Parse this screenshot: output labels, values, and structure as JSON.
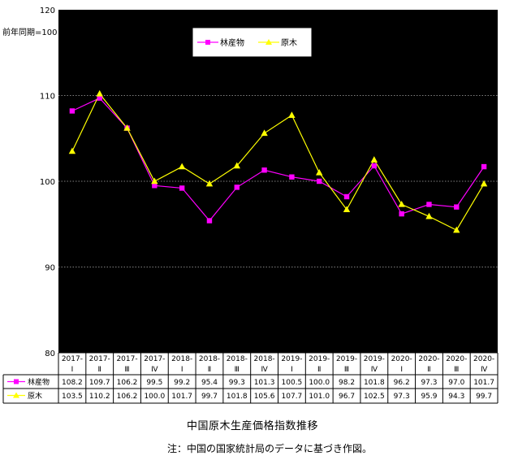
{
  "chart_data": {
    "type": "line",
    "ylabel": "前年同期=100",
    "ylim": [
      80,
      120
    ],
    "yticks": [
      "80",
      "90",
      "100",
      "110",
      "120"
    ],
    "grid": true,
    "legend_position": "top-center",
    "categories": [
      {
        "year": "2017-",
        "quarter": "Ⅰ"
      },
      {
        "year": "2017-",
        "quarter": "Ⅱ"
      },
      {
        "year": "2017-",
        "quarter": "Ⅲ"
      },
      {
        "year": "2017-",
        "quarter": "Ⅳ"
      },
      {
        "year": "2018-",
        "quarter": "Ⅰ"
      },
      {
        "year": "2018-",
        "quarter": "Ⅱ"
      },
      {
        "year": "2018-",
        "quarter": "Ⅲ"
      },
      {
        "year": "2018-",
        "quarter": "Ⅳ"
      },
      {
        "year": "2019-",
        "quarter": "Ⅰ"
      },
      {
        "year": "2019-",
        "quarter": "Ⅱ"
      },
      {
        "year": "2019-",
        "quarter": "Ⅲ"
      },
      {
        "year": "2019-",
        "quarter": "Ⅳ"
      },
      {
        "year": "2020-",
        "quarter": "Ⅰ"
      },
      {
        "year": "2020-",
        "quarter": "Ⅱ"
      },
      {
        "year": "2020-",
        "quarter": "Ⅲ"
      },
      {
        "year": "2020-",
        "quarter": "Ⅳ"
      }
    ],
    "series": [
      {
        "name": "林産物",
        "color": "#ff00ff",
        "marker": "square",
        "values": [
          108.2,
          109.7,
          106.2,
          99.5,
          99.2,
          95.4,
          99.3,
          101.3,
          100.5,
          100.0,
          98.2,
          101.8,
          96.2,
          97.3,
          97.0,
          101.7
        ],
        "labels": [
          "108.2",
          "109.7",
          "106.2",
          "99.5",
          "99.2",
          "95.4",
          "99.3",
          "101.3",
          "100.5",
          "100.0",
          "98.2",
          "101.8",
          "96.2",
          "97.3",
          "97.0",
          "101.7"
        ]
      },
      {
        "name": "原木",
        "color": "#ffff00",
        "marker": "triangle",
        "values": [
          103.5,
          110.2,
          106.2,
          100.0,
          101.7,
          99.7,
          101.8,
          105.6,
          107.7,
          101.0,
          96.7,
          102.5,
          97.3,
          95.9,
          94.3,
          99.7
        ],
        "labels": [
          "103.5",
          "110.2",
          "106.2",
          "100.0",
          "101.7",
          "99.7",
          "101.8",
          "105.6",
          "107.7",
          "101.0",
          "96.7",
          "102.5",
          "97.3",
          "95.9",
          "94.3",
          "99.7"
        ]
      }
    ]
  },
  "caption": {
    "title": "中国原木生産価格指数推移",
    "note": "注：中国の国家統計局のデータに基づき作図。"
  }
}
